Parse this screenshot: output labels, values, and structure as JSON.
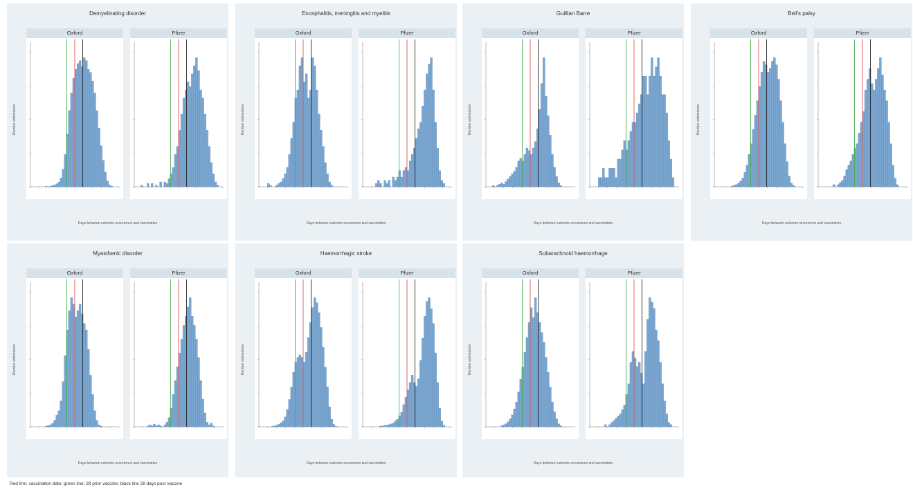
{
  "footnote": "Red line: vaccination date; green line: 28 prior vaccine; black line 28 days post vaccine",
  "vaccines": [
    "Oxford",
    "Pfizer"
  ],
  "axis": {
    "x_label": "Days between outcome occurrence and vaccination",
    "y_label": "Number admissions"
  },
  "colors": {
    "bar": "#7aa6cf",
    "bar_edge": "#5b88b5",
    "red": "#d9534f",
    "green": "#4caf50",
    "black": "#222222",
    "strip": "#d7e3ea",
    "group_bg": "#eaf0f3"
  },
  "chart_data": [
    {
      "type": "bar",
      "title": "Demyelinating disorder",
      "series": [
        {
          "name": "Oxford",
          "values": [
            0,
            0,
            0,
            0,
            0,
            0,
            0,
            1,
            0,
            1,
            2,
            3,
            5,
            8,
            15,
            30,
            55,
            90,
            130,
            160,
            185,
            200,
            210,
            215,
            205,
            220,
            215,
            200,
            195,
            180,
            160,
            130,
            100,
            70,
            45,
            25,
            10,
            3,
            1,
            0,
            0,
            0
          ]
        },
        {
          "name": "Pfizer",
          "values": [
            0,
            0,
            0,
            1,
            0,
            0,
            2,
            0,
            2,
            0,
            1,
            0,
            3,
            0,
            3,
            2,
            5,
            8,
            12,
            20,
            25,
            35,
            45,
            55,
            60,
            65,
            62,
            70,
            75,
            80,
            72,
            60,
            55,
            45,
            35,
            25,
            15,
            8,
            3,
            1,
            0,
            0
          ]
        }
      ]
    },
    {
      "type": "bar",
      "title": "Encephalitis, meningitis and myelitis",
      "series": [
        {
          "name": "Oxford",
          "values": [
            0,
            0,
            0,
            0,
            2,
            1,
            0,
            0,
            1,
            2,
            3,
            5,
            8,
            12,
            20,
            30,
            40,
            55,
            60,
            75,
            80,
            65,
            70,
            55,
            60,
            80,
            75,
            60,
            45,
            35,
            25,
            15,
            8,
            3,
            1,
            0,
            0,
            0,
            0,
            0,
            0,
            0
          ]
        },
        {
          "name": "Pfizer",
          "values": [
            0,
            0,
            0,
            0,
            0,
            0,
            1,
            2,
            1,
            0,
            2,
            1,
            2,
            0,
            3,
            2,
            3,
            5,
            3,
            5,
            6,
            5,
            8,
            10,
            12,
            15,
            18,
            20,
            25,
            30,
            35,
            38,
            40,
            30,
            20,
            12,
            5,
            2,
            1,
            0,
            0,
            0
          ]
        }
      ]
    },
    {
      "type": "bar",
      "title": "Guillian Barre",
      "series": [
        {
          "name": "Oxford",
          "values": [
            0,
            0,
            0,
            1,
            0,
            1,
            2,
            3,
            2,
            4,
            6,
            8,
            10,
            12,
            15,
            20,
            22,
            20,
            25,
            30,
            28,
            25,
            30,
            35,
            45,
            60,
            80,
            100,
            70,
            55,
            40,
            25,
            15,
            8,
            3,
            1,
            0,
            0,
            0,
            0,
            0,
            0
          ]
        },
        {
          "name": "Pfizer",
          "values": [
            0,
            0,
            0,
            0,
            1,
            1,
            2,
            1,
            1,
            2,
            2,
            2,
            1,
            3,
            3,
            4,
            5,
            4,
            5,
            6,
            7,
            7,
            8,
            9,
            10,
            12,
            12,
            10,
            12,
            14,
            12,
            13,
            14,
            12,
            10,
            10,
            8,
            5,
            3,
            1,
            0,
            0
          ]
        }
      ]
    },
    {
      "type": "bar",
      "title": "Bell's palsy",
      "series": [
        {
          "name": "Oxford",
          "values": [
            0,
            0,
            0,
            0,
            0,
            0,
            0,
            0,
            1,
            2,
            3,
            5,
            8,
            12,
            20,
            30,
            45,
            60,
            80,
            100,
            120,
            140,
            160,
            175,
            170,
            160,
            165,
            175,
            180,
            170,
            150,
            120,
            90,
            60,
            35,
            15,
            5,
            2,
            0,
            0,
            0,
            0
          ]
        },
        {
          "name": "Pfizer",
          "values": [
            0,
            0,
            0,
            0,
            0,
            0,
            0,
            1,
            0,
            1,
            2,
            3,
            5,
            8,
            10,
            12,
            15,
            18,
            20,
            25,
            30,
            35,
            45,
            50,
            55,
            48,
            45,
            50,
            55,
            60,
            52,
            45,
            40,
            30,
            20,
            10,
            4,
            1,
            0,
            0,
            0,
            0
          ]
        }
      ]
    },
    {
      "type": "bar",
      "title": "Myasthenic disorder",
      "series": [
        {
          "name": "Oxford",
          "values": [
            0,
            0,
            0,
            0,
            0,
            0,
            0,
            1,
            2,
            3,
            5,
            10,
            18,
            25,
            40,
            70,
            110,
            150,
            180,
            200,
            190,
            170,
            180,
            190,
            175,
            160,
            150,
            120,
            80,
            50,
            25,
            10,
            3,
            1,
            0,
            0,
            0,
            0,
            0,
            0,
            0,
            0
          ]
        },
        {
          "name": "Pfizer",
          "values": [
            0,
            0,
            0,
            0,
            0,
            0,
            1,
            2,
            1,
            3,
            1,
            2,
            1,
            0,
            2,
            5,
            10,
            20,
            35,
            50,
            65,
            80,
            95,
            110,
            120,
            130,
            140,
            120,
            110,
            95,
            75,
            50,
            30,
            15,
            5,
            2,
            4,
            1,
            0,
            0,
            0,
            0
          ]
        }
      ]
    },
    {
      "type": "bar",
      "title": "Haemorrhagic stroke",
      "series": [
        {
          "name": "Oxford",
          "values": [
            0,
            0,
            0,
            0,
            0,
            0,
            1,
            2,
            3,
            5,
            8,
            12,
            20,
            35,
            55,
            80,
            110,
            130,
            140,
            145,
            140,
            130,
            150,
            180,
            210,
            240,
            260,
            250,
            230,
            200,
            160,
            120,
            80,
            40,
            15,
            5,
            1,
            0,
            0,
            0,
            0,
            0
          ]
        },
        {
          "name": "Pfizer",
          "values": [
            0,
            0,
            0,
            0,
            0,
            0,
            0,
            0,
            1,
            1,
            2,
            2,
            3,
            4,
            5,
            8,
            10,
            15,
            20,
            30,
            40,
            50,
            60,
            70,
            60,
            55,
            65,
            90,
            120,
            150,
            170,
            175,
            160,
            140,
            100,
            60,
            25,
            8,
            2,
            0,
            0,
            0
          ]
        }
      ]
    },
    {
      "type": "bar",
      "title": "Subarachnoid haemorrhage",
      "series": [
        {
          "name": "Oxford",
          "values": [
            0,
            0,
            0,
            0,
            0,
            0,
            0,
            1,
            2,
            3,
            5,
            8,
            12,
            18,
            25,
            35,
            48,
            60,
            75,
            90,
            105,
            120,
            110,
            130,
            115,
            105,
            95,
            85,
            70,
            55,
            40,
            25,
            15,
            8,
            3,
            1,
            0,
            0,
            0,
            0,
            0,
            0
          ]
        },
        {
          "name": "Pfizer",
          "values": [
            0,
            0,
            0,
            0,
            0,
            0,
            0,
            1,
            0,
            1,
            2,
            3,
            4,
            5,
            6,
            8,
            10,
            15,
            20,
            30,
            35,
            32,
            28,
            30,
            25,
            20,
            35,
            50,
            60,
            58,
            55,
            45,
            40,
            30,
            20,
            12,
            6,
            2,
            1,
            0,
            0,
            0
          ]
        }
      ]
    }
  ]
}
